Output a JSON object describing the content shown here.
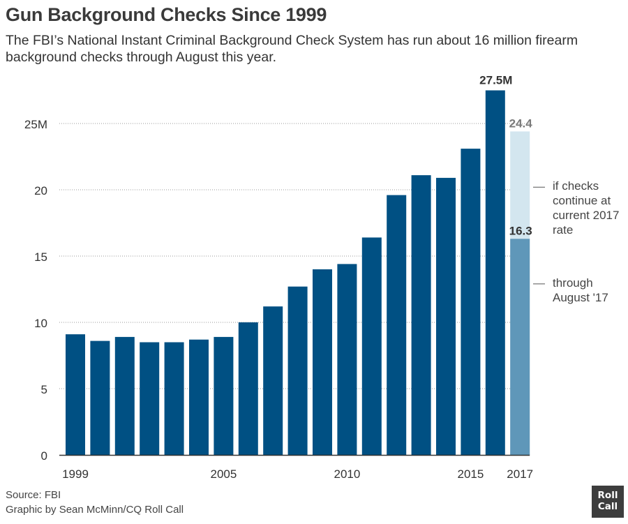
{
  "header": {
    "title": "Gun Background Checks Since 1999",
    "subtitle": "The FBI’s National Instant Criminal Background Check System has run about 16 million firearm background checks through August this year."
  },
  "chart_data": {
    "type": "bar",
    "categories": [
      "1999",
      "2000",
      "2001",
      "2002",
      "2003",
      "2004",
      "2005",
      "2006",
      "2007",
      "2008",
      "2009",
      "2010",
      "2011",
      "2012",
      "2013",
      "2014",
      "2015",
      "2016",
      "2017"
    ],
    "x_tick_labels": [
      {
        "category": "1999",
        "label": "1999"
      },
      {
        "category": "2005",
        "label": "2005"
      },
      {
        "category": "2010",
        "label": "2010"
      },
      {
        "category": "2015",
        "label": "2015"
      },
      {
        "category": "2017",
        "label": "2017"
      }
    ],
    "ylim": [
      0,
      25
    ],
    "y_ticks": [
      0,
      5,
      10,
      15,
      20,
      25
    ],
    "y_tick_labels": [
      "0",
      "5",
      "10",
      "15",
      "20",
      "25M"
    ],
    "grid": "horizontal dotted",
    "series": [
      {
        "name": "",
        "color": "#005083",
        "values": [
          9.1,
          8.6,
          8.9,
          8.5,
          8.5,
          8.7,
          8.9,
          10.0,
          11.2,
          12.7,
          14.0,
          14.4,
          16.4,
          19.6,
          21.1,
          20.9,
          23.1,
          27.5,
          null
        ]
      },
      {
        "name": "through August '17",
        "color": "#5f97b9",
        "values": [
          null,
          null,
          null,
          null,
          null,
          null,
          null,
          null,
          null,
          null,
          null,
          null,
          null,
          null,
          null,
          null,
          null,
          null,
          16.3
        ]
      },
      {
        "name": "if checks continue at current 2017 rate",
        "color": "#d3e6ef",
        "values": [
          null,
          null,
          null,
          null,
          null,
          null,
          null,
          null,
          null,
          null,
          null,
          null,
          null,
          null,
          null,
          null,
          null,
          null,
          24.4
        ]
      }
    ],
    "data_labels": [
      {
        "category": "2016",
        "text": "27.5M",
        "value": 27.5
      },
      {
        "category": "2017",
        "text": "24.4",
        "value": 24.4
      },
      {
        "category": "2017",
        "text": "16.3",
        "value": 16.3
      }
    ],
    "annotations": [
      {
        "lines": [
          "if checks",
          "continue at",
          "current 2017",
          "rate"
        ],
        "value": 20.2
      },
      {
        "lines": [
          "through",
          "August '17"
        ],
        "value": 12.9
      }
    ],
    "colors": {
      "bar": "#005083",
      "partial": "#5f97b9",
      "projected": "#d3e6ef",
      "label_dark": "#333333",
      "label_grey": "#7a7a7a",
      "grid": "#9a9a9a",
      "axis": "#333333"
    }
  },
  "footer": {
    "source": "Source: FBI",
    "credit": "Graphic by Sean McMinn/CQ Roll Call"
  },
  "logo": {
    "line1": "Roll",
    "line2": "Call"
  }
}
